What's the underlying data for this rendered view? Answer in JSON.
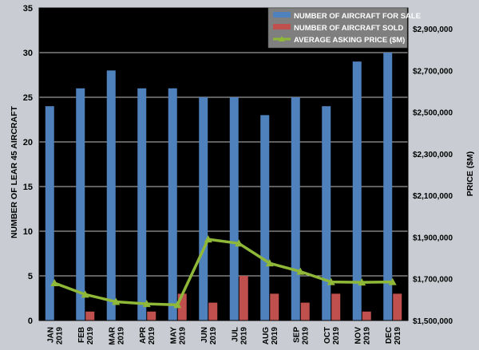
{
  "chart_data": {
    "type": "bar",
    "categories": [
      [
        "JAN",
        "2019"
      ],
      [
        "FEB",
        "2019"
      ],
      [
        "MAR",
        "2019"
      ],
      [
        "APR",
        "2019"
      ],
      [
        "MAY",
        "2019"
      ],
      [
        "JUN",
        "2019"
      ],
      [
        "JUL",
        "2019"
      ],
      [
        "AUG",
        "2019"
      ],
      [
        "SEP",
        "2019"
      ],
      [
        "OCT",
        "2019"
      ],
      [
        "NOV",
        "2019"
      ],
      [
        "DEC",
        "2019"
      ]
    ],
    "series": [
      {
        "name": "NUMBER OF AIRCRAFT FOR SALE",
        "type": "bar",
        "axis": "left",
        "color": "#4f81bd",
        "values": [
          24,
          26,
          28,
          26,
          26,
          25,
          25,
          23,
          25,
          24,
          29,
          30
        ]
      },
      {
        "name": "NUMBER OF AIRCRAFT SOLD",
        "type": "bar",
        "axis": "left",
        "color": "#c0504d",
        "values": [
          0,
          1,
          0,
          1,
          3,
          2,
          5,
          3,
          2,
          3,
          1,
          3
        ]
      },
      {
        "name": "AVERAGE ASKING PRICE ($M)",
        "type": "line",
        "axis": "right",
        "color": "#8fb838",
        "values": [
          1680000,
          1625000,
          1590000,
          1580000,
          1575000,
          1890000,
          1870000,
          1775000,
          1735000,
          1685000,
          1683000,
          1685000
        ]
      }
    ],
    "ylabel": "NUMBER OF LEAR 45 AIRCRAFT",
    "ylim": [
      0,
      35
    ],
    "yticks": [
      "0",
      "5",
      "10",
      "15",
      "20",
      "25",
      "30",
      "35"
    ],
    "y2label": "PRICE ($M)",
    "y2lim": [
      1500000,
      3000000
    ],
    "y2ticks": [
      {
        "value": 1500000,
        "label": "$1,500,000"
      },
      {
        "value": 1700000,
        "label": "$1,700,000"
      },
      {
        "value": 1900000,
        "label": "$1,900,000"
      },
      {
        "value": 2100000,
        "label": "$2,100,000"
      },
      {
        "value": 2300000,
        "label": "$2,300,000"
      },
      {
        "value": 2500000,
        "label": "$2,500,000"
      },
      {
        "value": 2700000,
        "label": "$2,700,000"
      },
      {
        "value": 2900000,
        "label": "$2,900,000"
      }
    ],
    "legend_position": "top-right",
    "grid": true,
    "plot_background": "#000000",
    "grid_color": "#ffffff"
  }
}
